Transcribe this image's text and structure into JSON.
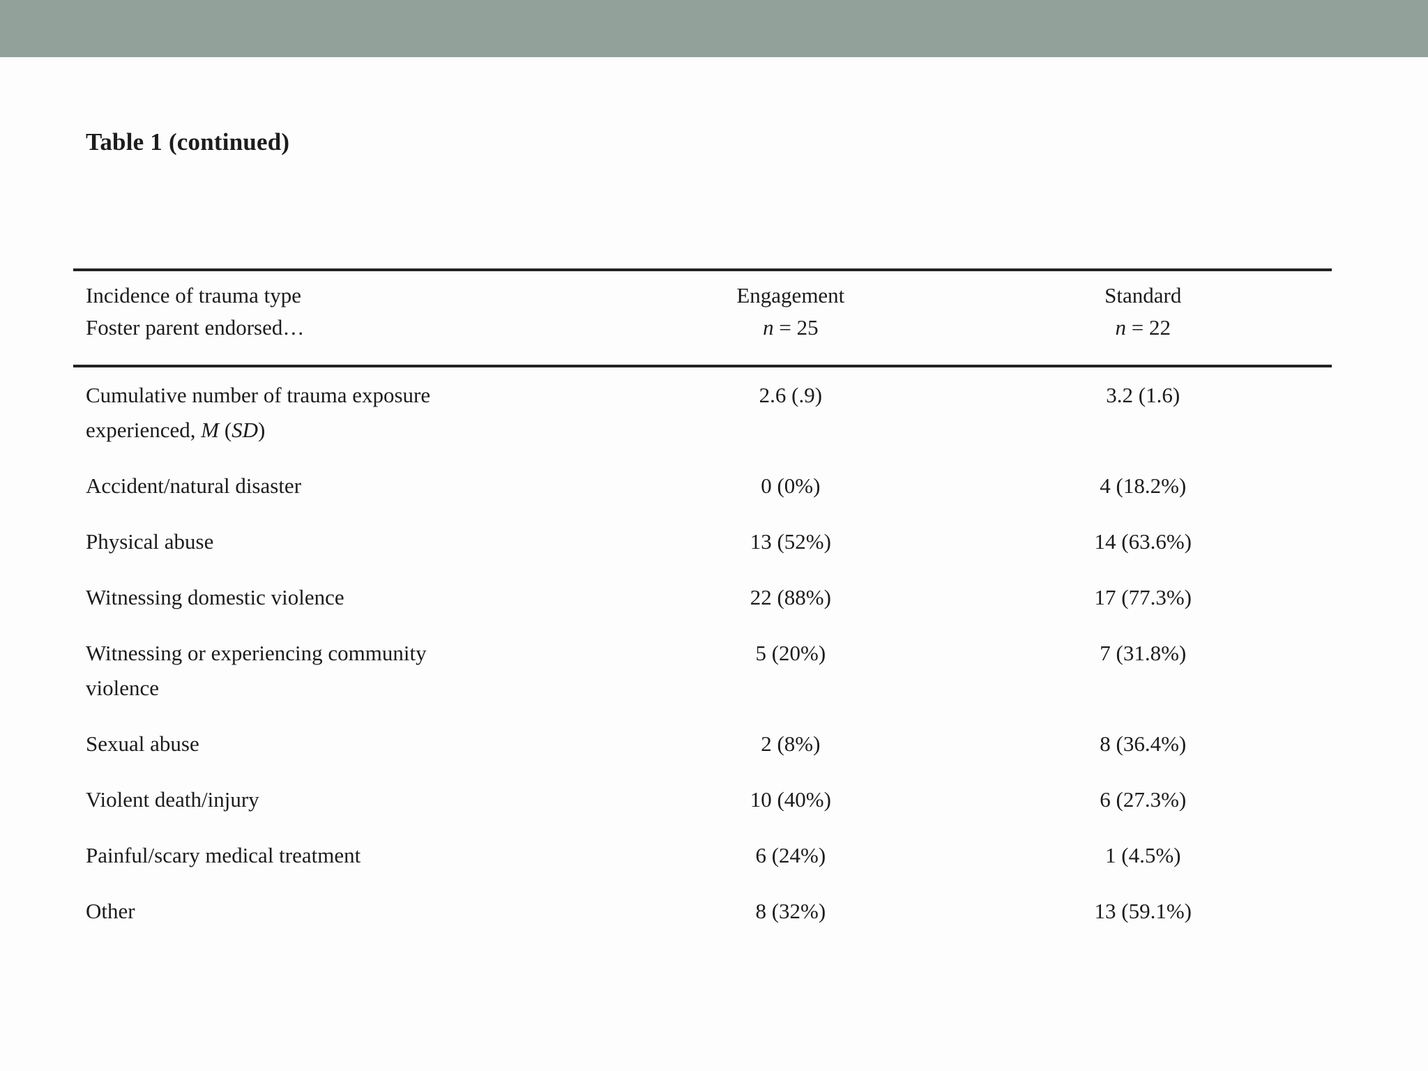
{
  "page": {
    "title": "Table 1 (continued)"
  },
  "colors": {
    "header_bar": "#92a29a",
    "background": "#fdfdfd",
    "text": "#1c1c1c",
    "rule": "#232323"
  },
  "table": {
    "header": {
      "col1_line1": "Incidence of trauma type",
      "col1_line2": "Foster parent endorsed…",
      "col2_line1": "Engagement",
      "col2_n_label": "n",
      "col2_n_value": " = 25",
      "col3_line1": "Standard",
      "col3_n_label": "n",
      "col3_n_value": " = 22"
    },
    "rows": [
      {
        "label_line1": "Cumulative number of trauma exposure",
        "label_line2_prefix": "experienced, ",
        "label_line2_m": "M",
        "label_line2_mid": " (",
        "label_line2_sd": "SD",
        "label_line2_suffix": ")",
        "engagement": "2.6 (.9)",
        "standard": "3.2 (1.6)"
      },
      {
        "label_line1": "Accident/natural disaster",
        "engagement": "0 (0%)",
        "standard": "4 (18.2%)"
      },
      {
        "label_line1": "Physical abuse",
        "engagement": "13 (52%)",
        "standard": "14 (63.6%)"
      },
      {
        "label_line1": "Witnessing domestic violence",
        "engagement": "22 (88%)",
        "standard": "17 (77.3%)"
      },
      {
        "label_line1": "Witnessing or experiencing community",
        "label_line2": "violence",
        "engagement": "5 (20%)",
        "standard": "7 (31.8%)"
      },
      {
        "label_line1": "Sexual abuse",
        "engagement": "2 (8%)",
        "standard": "8 (36.4%)"
      },
      {
        "label_line1": "Violent death/injury",
        "engagement": "10 (40%)",
        "standard": "6 (27.3%)"
      },
      {
        "label_line1": "Painful/scary medical treatment",
        "engagement": "6 (24%)",
        "standard": "1 (4.5%)"
      },
      {
        "label_line1": "Other",
        "engagement": "8 (32%)",
        "standard": "13 (59.1%)"
      }
    ]
  }
}
